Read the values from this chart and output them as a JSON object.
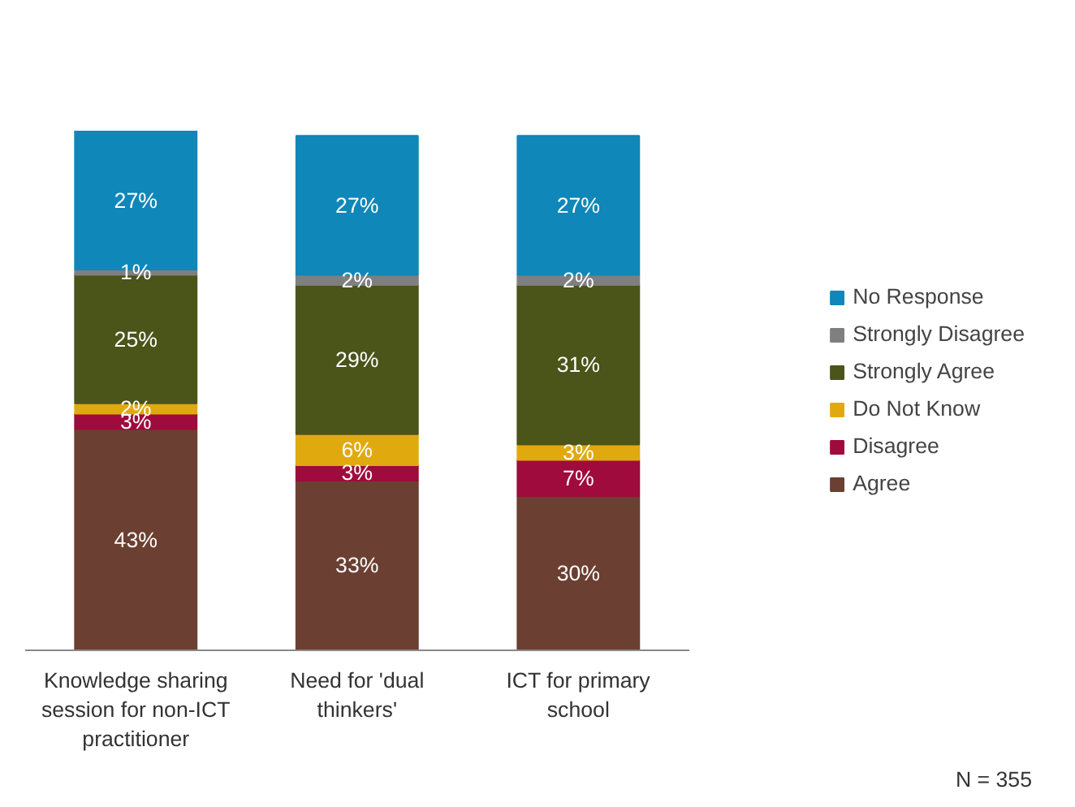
{
  "chart_data": {
    "type": "bar",
    "stacked": true,
    "legend": "right",
    "grid": false,
    "data_labels": true,
    "categories": [
      "Knowledge sharing session for non-ICT practitioner",
      "Need for 'dual thinkers'",
      "ICT for primary school"
    ],
    "series": [
      {
        "name": "Agree",
        "color": "#6b3f31",
        "values": [
          43,
          33,
          30
        ],
        "value_labels": [
          "43%",
          "33%",
          "30%"
        ]
      },
      {
        "name": "Disagree",
        "color": "#9e0b3c",
        "values": [
          3,
          3,
          7
        ],
        "value_labels": [
          "3%",
          "3%",
          "7%"
        ]
      },
      {
        "name": "Do Not Know",
        "color": "#e0aa0f",
        "values": [
          2,
          6,
          3
        ],
        "value_labels": [
          "2%",
          "6%",
          "3%"
        ]
      },
      {
        "name": "Strongly Agree",
        "color": "#4b5419",
        "values": [
          25,
          29,
          31
        ],
        "value_labels": [
          "25%",
          "29%",
          "31%"
        ]
      },
      {
        "name": "Strongly Disagree",
        "color": "#7f7f7f",
        "values": [
          1,
          2,
          2
        ],
        "value_labels": [
          "1%",
          "2%",
          "2%"
        ]
      },
      {
        "name": "No Response",
        "color": "#0f87b8",
        "values": [
          27,
          27,
          27
        ],
        "value_labels": [
          "27%",
          "27%",
          "27%"
        ]
      }
    ],
    "annotations": [
      "N = 355"
    ]
  }
}
